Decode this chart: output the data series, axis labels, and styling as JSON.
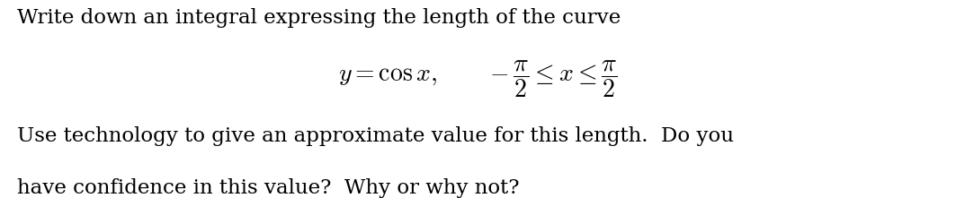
{
  "background_color": "#ffffff",
  "line1": "Write down an integral expressing the length of the curve",
  "line3": "Use technology to give an approximate value for this length.  Do you",
  "line4": "have confidence in this value?  Why or why not?",
  "math_line": "$y = \\cos x, \\qquad -\\dfrac{\\pi}{2} \\leq x \\leq \\dfrac{\\pi}{2}$",
  "text_color": "#000000",
  "font_size_body": 16.5,
  "font_size_math": 20,
  "fig_width": 10.63,
  "fig_height": 2.21,
  "dpi": 100
}
